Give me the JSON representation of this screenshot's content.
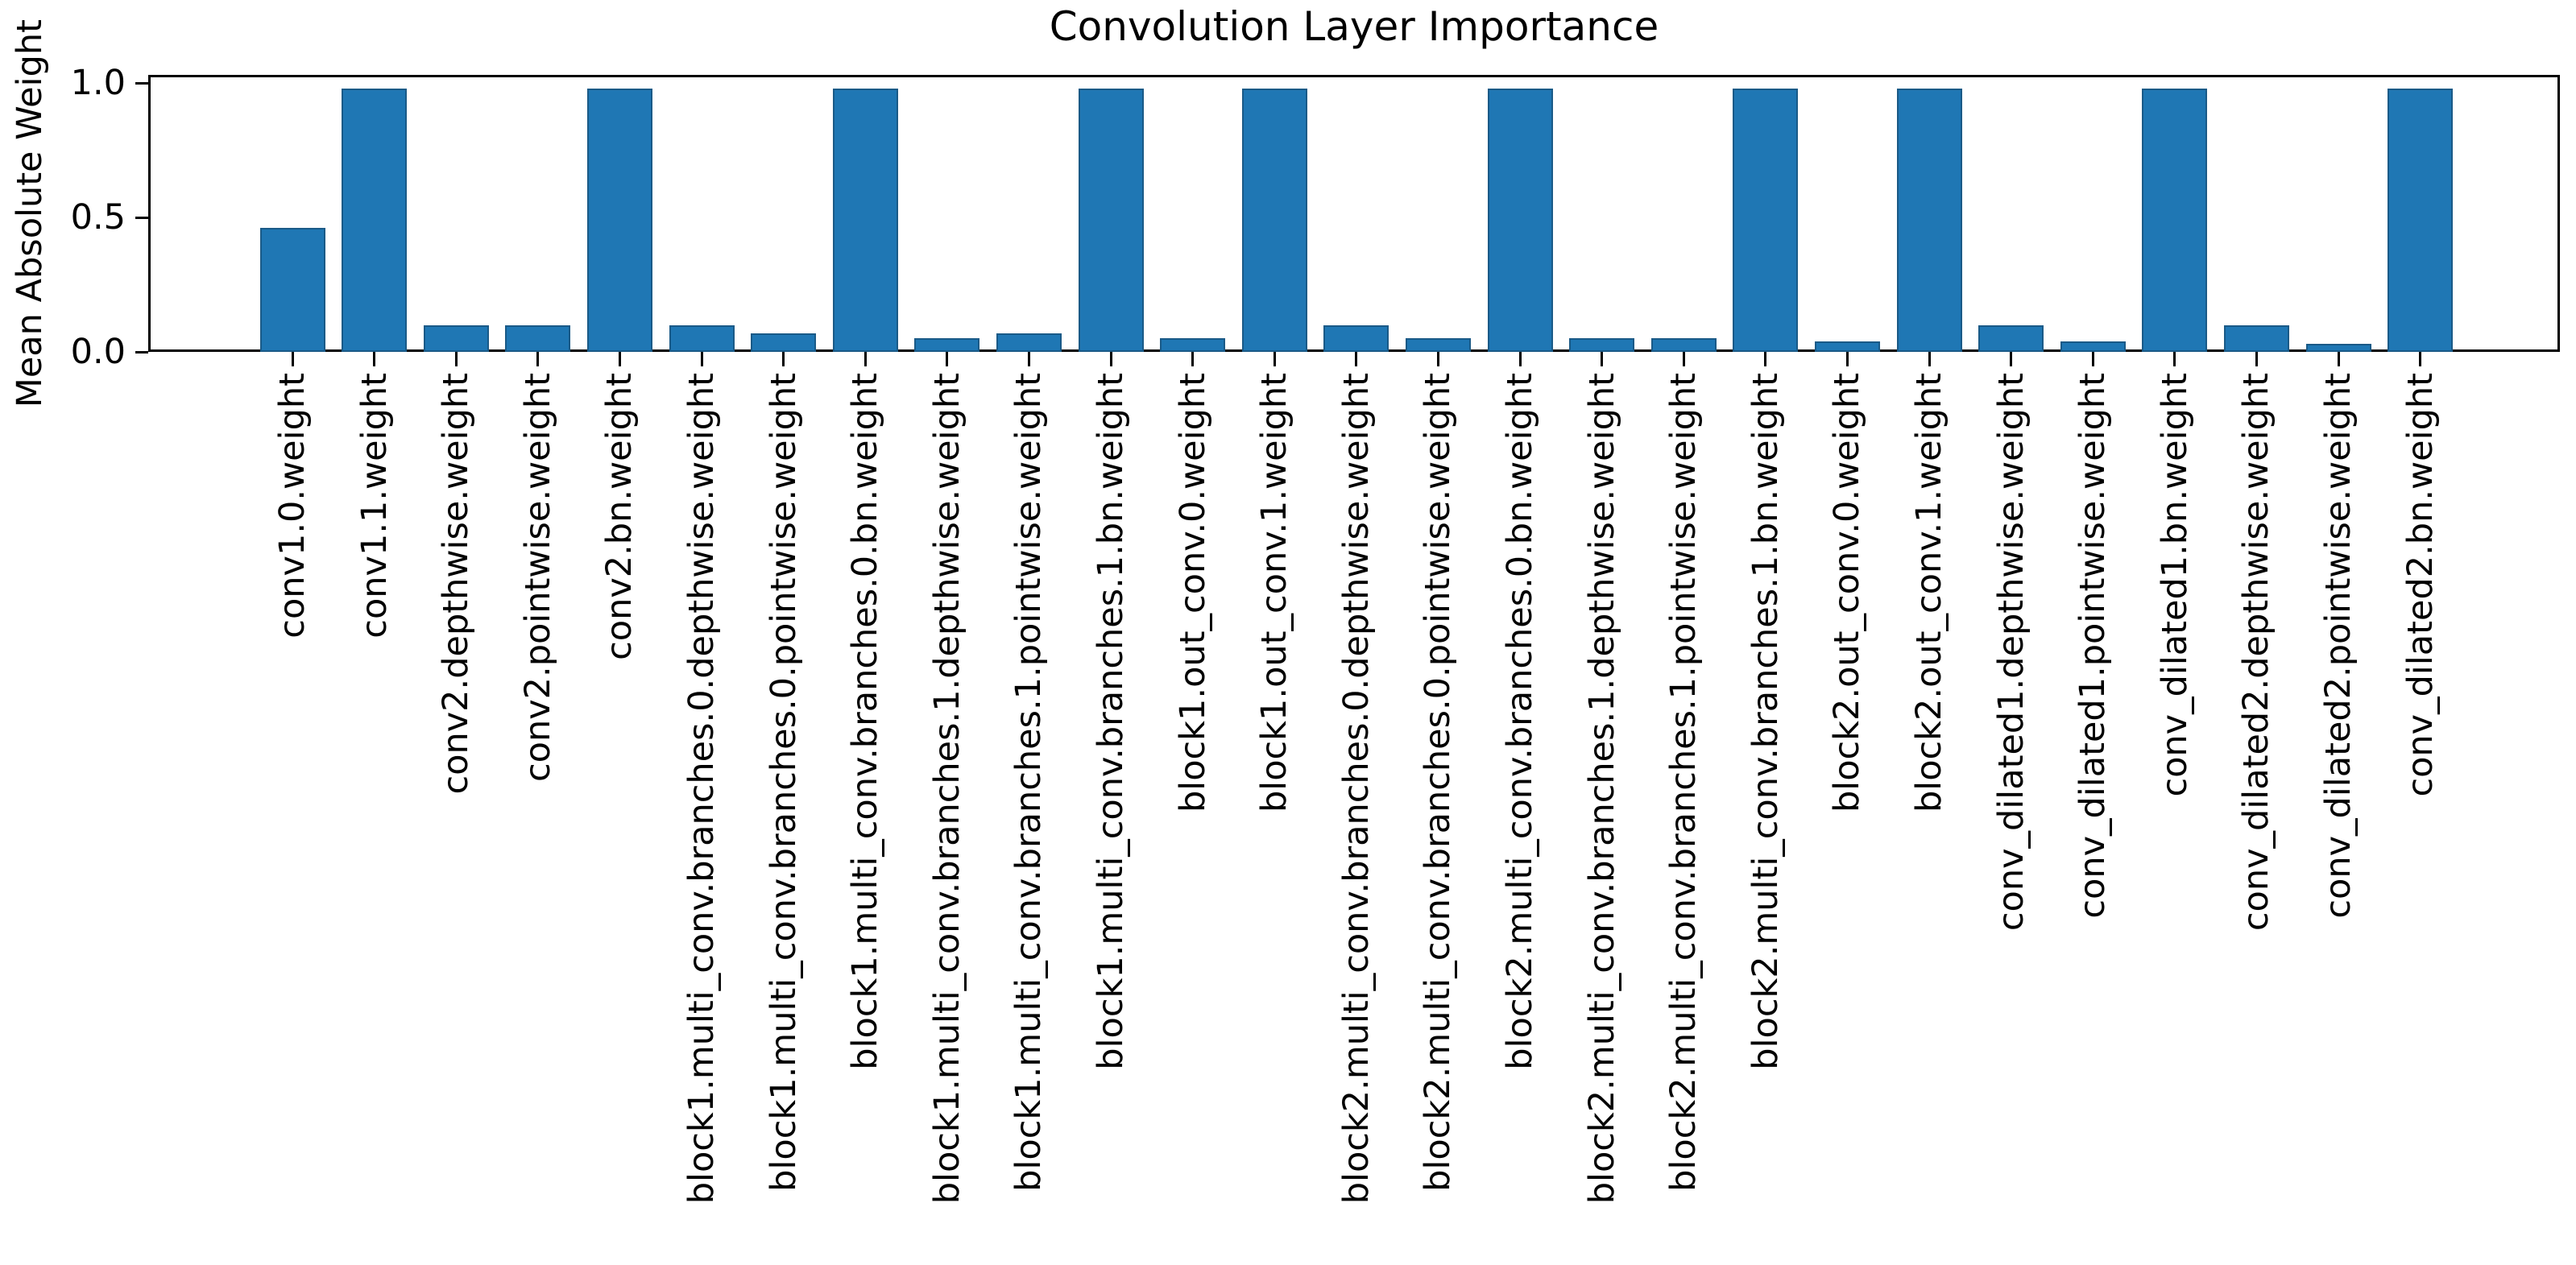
{
  "chart_data": {
    "type": "bar",
    "title": "Convolution Layer Importance",
    "xlabel": "",
    "ylabel": "Mean Absolute Weight",
    "ylim": [
      0,
      1.03
    ],
    "grid": false,
    "legend": "none",
    "bar_color": "#1f77b4",
    "bar_edge_color": "#1a5a87",
    "axis_color": "#000000",
    "yticks": [
      {
        "label": "0.0",
        "value": 0.0
      },
      {
        "label": "0.5",
        "value": 0.5
      },
      {
        "label": "1.0",
        "value": 1.0
      }
    ],
    "categories": [
      "conv1.0.weight",
      "conv1.1.weight",
      "conv2.depthwise.weight",
      "conv2.pointwise.weight",
      "conv2.bn.weight",
      "block1.multi_conv.branches.0.depthwise.weight",
      "block1.multi_conv.branches.0.pointwise.weight",
      "block1.multi_conv.branches.0.bn.weight",
      "block1.multi_conv.branches.1.depthwise.weight",
      "block1.multi_conv.branches.1.pointwise.weight",
      "block1.multi_conv.branches.1.bn.weight",
      "block1.out_conv.0.weight",
      "block1.out_conv.1.weight",
      "block2.multi_conv.branches.0.depthwise.weight",
      "block2.multi_conv.branches.0.pointwise.weight",
      "block2.multi_conv.branches.0.bn.weight",
      "block2.multi_conv.branches.1.depthwise.weight",
      "block2.multi_conv.branches.1.pointwise.weight",
      "block2.multi_conv.branches.1.bn.weight",
      "block2.out_conv.0.weight",
      "block2.out_conv.1.weight",
      "conv_dilated1.depthwise.weight",
      "conv_dilated1.pointwise.weight",
      "conv_dilated1.bn.weight",
      "conv_dilated2.depthwise.weight",
      "conv_dilated2.pointwise.weight",
      "conv_dilated2.bn.weight"
    ],
    "values": [
      0.46,
      0.98,
      0.1,
      0.1,
      0.98,
      0.1,
      0.07,
      0.98,
      0.05,
      0.07,
      0.98,
      0.05,
      0.98,
      0.1,
      0.05,
      0.98,
      0.05,
      0.05,
      0.98,
      0.04,
      0.98,
      0.1,
      0.04,
      0.98,
      0.1,
      0.03,
      0.98
    ]
  }
}
